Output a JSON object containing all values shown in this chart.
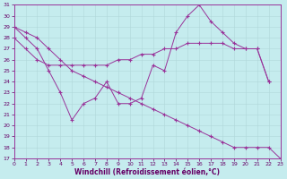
{
  "xlabel": "Windchill (Refroidissement éolien,°C)",
  "xlim": [
    0,
    23
  ],
  "ylim": [
    17,
    31
  ],
  "yticks": [
    17,
    18,
    19,
    20,
    21,
    22,
    23,
    24,
    25,
    26,
    27,
    28,
    29,
    30,
    31
  ],
  "xticks": [
    0,
    1,
    2,
    3,
    4,
    5,
    6,
    7,
    8,
    9,
    10,
    11,
    12,
    13,
    14,
    15,
    16,
    17,
    18,
    19,
    20,
    21,
    22,
    23
  ],
  "bg_color": "#c5ecee",
  "grid_color": "#b0d8da",
  "line_color": "#993399",
  "series": [
    {
      "x": [
        0,
        1,
        2,
        3,
        4,
        5,
        6,
        7,
        8,
        9,
        10,
        11,
        12,
        13,
        14,
        15,
        16,
        17,
        18,
        19,
        20,
        21,
        22
      ],
      "y": [
        29,
        28,
        27,
        25,
        23,
        20.5,
        22,
        22.5,
        24,
        22,
        22,
        22.5,
        25.5,
        25,
        28.5,
        30,
        31,
        29.5,
        28.5,
        27.5,
        27,
        27,
        24
      ]
    },
    {
      "x": [
        0,
        1,
        2,
        3,
        4,
        5,
        6,
        7,
        8,
        9,
        10,
        11,
        12,
        13,
        14,
        15,
        16,
        17,
        18,
        19,
        20,
        21,
        22
      ],
      "y": [
        28,
        27,
        26,
        25.5,
        25.5,
        25.5,
        25.5,
        25.5,
        25.5,
        26,
        26,
        26.5,
        26.5,
        27,
        27,
        27.5,
        27.5,
        27.5,
        27.5,
        27,
        27,
        27,
        24
      ]
    },
    {
      "x": [
        0,
        1,
        2,
        3,
        4,
        5,
        6,
        7,
        8,
        9,
        10,
        11,
        12,
        13,
        14,
        15,
        16,
        17,
        18,
        19,
        20,
        21,
        22,
        23
      ],
      "y": [
        29,
        28.5,
        28,
        27,
        26,
        25,
        24.5,
        24,
        23.5,
        23,
        22.5,
        22,
        21.5,
        21,
        20.5,
        20,
        19.5,
        19,
        18.5,
        18,
        18,
        18,
        18,
        17
      ]
    }
  ]
}
